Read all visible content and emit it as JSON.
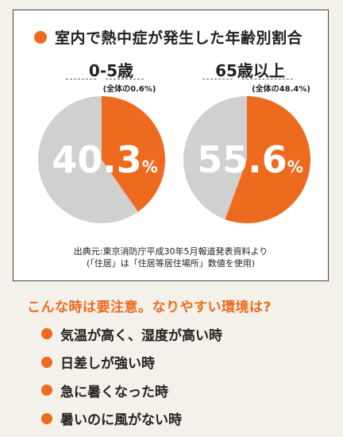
{
  "card": {
    "title": "室内で熱中症が発生した年齢別割合",
    "source_line1": "出典元:東京消防庁平成30年5月報道発表資料より",
    "source_line2": "(「住居」は「住居等居住場所」数値を使用)"
  },
  "colors": {
    "accent": "#ee6a1e",
    "gray": "#d0d0d0"
  },
  "chart_data": [
    {
      "type": "pie",
      "title": "0-5歳",
      "subtitle": "(全体の0.6%)",
      "value_text": "40.3",
      "unit": "%",
      "slices": [
        {
          "label": "",
          "value": 40.3,
          "color": "#ee6a1e"
        },
        {
          "label": "",
          "value": 59.7,
          "color": "#d0d0d0"
        }
      ]
    },
    {
      "type": "pie",
      "title": "65歳以上",
      "subtitle": "(全体の48.4%)",
      "value_text": "55.6",
      "unit": "%",
      "slices": [
        {
          "label": "",
          "value": 55.6,
          "color": "#ee6a1e"
        },
        {
          "label": "",
          "value": 44.4,
          "color": "#d0d0d0"
        }
      ]
    }
  ],
  "caution": {
    "heading": "こんな時は要注意。なりやすい環境は?",
    "items": [
      "気温が高く、湿度が高い時",
      "日差しが強い時",
      "急に暑くなった時",
      "暑いのに風がない時"
    ]
  }
}
